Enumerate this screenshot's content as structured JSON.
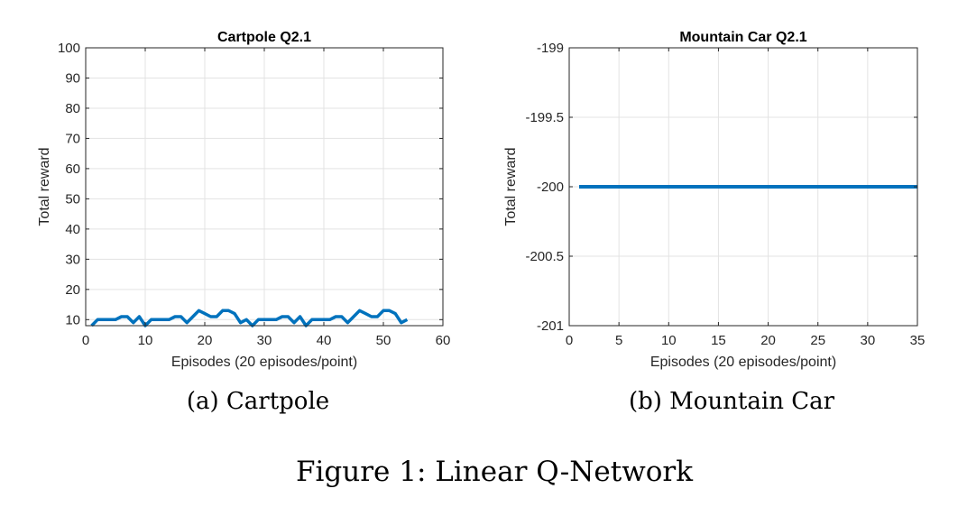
{
  "figure": {
    "caption": "Figure 1: Linear Q-Network",
    "line_color": "#0072BD"
  },
  "chart_data": [
    {
      "type": "line",
      "title": "Cartpole Q2.1",
      "xlabel": "Episodes (20 episodes/point)",
      "ylabel": "Total reward",
      "subcaption": "(a) Cartpole",
      "xlim": [
        0,
        60
      ],
      "ylim": [
        8,
        100
      ],
      "xticks": [
        0,
        10,
        20,
        30,
        40,
        50,
        60
      ],
      "yticks": [
        10,
        20,
        30,
        40,
        50,
        60,
        70,
        80,
        90,
        100
      ],
      "ytick_labels": [
        "10",
        "20",
        "30",
        "40",
        "50",
        "60",
        "70",
        "80",
        "90",
        "100"
      ],
      "grid": true,
      "series": [
        {
          "x": [
            1,
            2,
            3,
            4,
            5,
            6,
            7,
            8,
            9,
            10,
            11,
            12,
            13,
            14,
            15,
            16,
            17,
            18,
            19,
            20,
            21,
            22,
            23,
            24,
            25,
            26,
            27,
            28,
            29,
            30,
            31,
            32,
            33,
            34,
            35,
            36,
            37,
            38,
            39,
            40,
            41,
            42,
            43,
            44,
            45,
            46,
            47,
            48,
            49,
            50,
            51,
            52,
            53,
            54
          ],
          "y": [
            8,
            10,
            10,
            10,
            10,
            11,
            11,
            9,
            11,
            8,
            10,
            10,
            10,
            10,
            11,
            11,
            9,
            11,
            13,
            12,
            11,
            11,
            13,
            13,
            12,
            9,
            10,
            8,
            10,
            10,
            10,
            10,
            11,
            11,
            9,
            11,
            8,
            10,
            10,
            10,
            10,
            11,
            11,
            9,
            11,
            13,
            12,
            11,
            11,
            13,
            13,
            12,
            9,
            10
          ]
        }
      ]
    },
    {
      "type": "line",
      "title": "Mountain Car Q2.1",
      "xlabel": "Episodes (20 episodes/point)",
      "ylabel": "Total reward",
      "subcaption": "(b) Mountain Car",
      "xlim": [
        0,
        35
      ],
      "ylim": [
        -201,
        -199
      ],
      "xticks": [
        0,
        5,
        10,
        15,
        20,
        25,
        30,
        35
      ],
      "yticks": [
        -201,
        -200.5,
        -200,
        -199.5,
        -199
      ],
      "ytick_labels": [
        "-201",
        "-200.5",
        "-200",
        "-199.5",
        "-199"
      ],
      "grid": true,
      "series": [
        {
          "x": [
            1,
            35
          ],
          "y": [
            -200,
            -200
          ]
        }
      ]
    }
  ]
}
